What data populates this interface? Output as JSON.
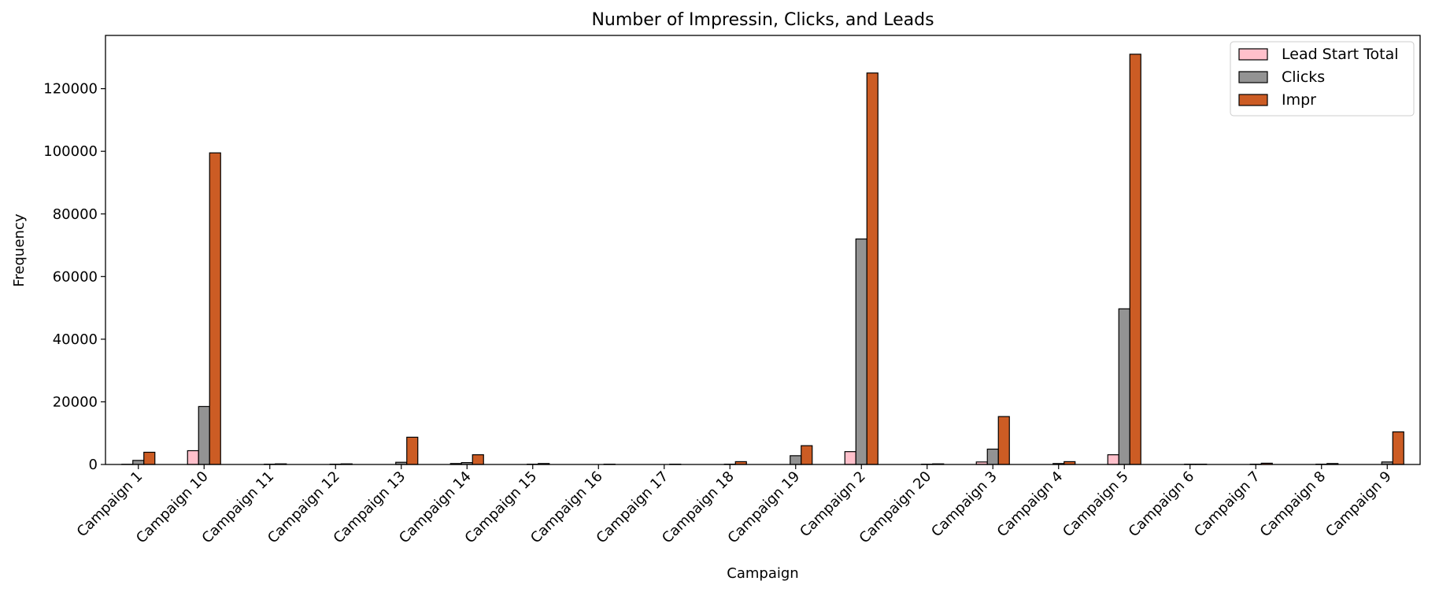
{
  "chart_data": {
    "type": "bar",
    "title": "Number of Impressin, Clicks, and Leads",
    "xlabel": "Campaign",
    "ylabel": "Frequency",
    "ylim": [
      0,
      137000
    ],
    "yticks": [
      0,
      20000,
      40000,
      60000,
      80000,
      100000,
      120000
    ],
    "legend_position": "top-right",
    "grid": false,
    "categories": [
      "Campaign 1",
      "Campaign 10",
      "Campaign 11",
      "Campaign 12",
      "Campaign 13",
      "Campaign 14",
      "Campaign 15",
      "Campaign 16",
      "Campaign 17",
      "Campaign 18",
      "Campaign 19",
      "Campaign 2",
      "Campaign 20",
      "Campaign 3",
      "Campaign 4",
      "Campaign 5",
      "Campaign 6",
      "Campaign 7",
      "Campaign 8",
      "Campaign 9"
    ],
    "series": [
      {
        "name": "Lead Start Total",
        "color": "#ffc0cb",
        "values": [
          60,
          4400,
          0,
          0,
          0,
          300,
          0,
          0,
          0,
          0,
          0,
          4100,
          0,
          800,
          0,
          3100,
          0,
          0,
          0,
          0
        ]
      },
      {
        "name": "Clicks",
        "color": "#939393",
        "values": [
          1300,
          18500,
          100,
          100,
          700,
          600,
          100,
          0,
          0,
          100,
          2800,
          72000,
          100,
          4900,
          300,
          49700,
          100,
          100,
          100,
          800
        ]
      },
      {
        "name": "Impr",
        "color": "#cc5c24",
        "values": [
          3900,
          99500,
          200,
          200,
          8700,
          3100,
          300,
          100,
          100,
          900,
          6000,
          125000,
          200,
          15300,
          900,
          131000,
          100,
          400,
          300,
          10400
        ]
      }
    ]
  }
}
